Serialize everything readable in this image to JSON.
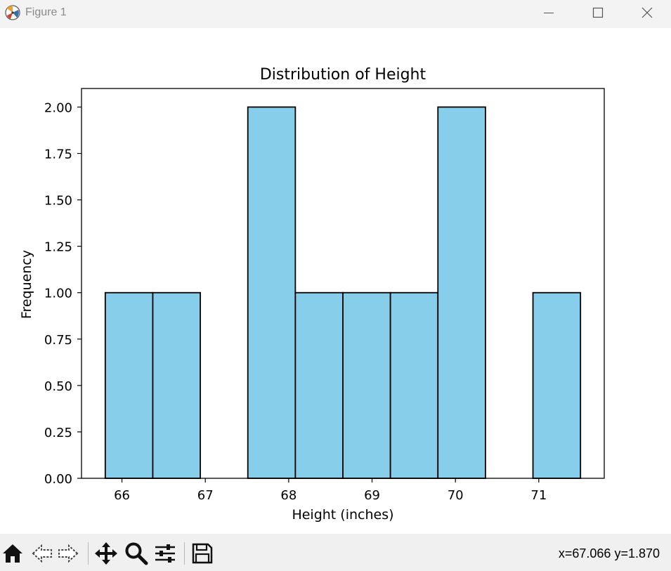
{
  "window": {
    "title": "Figure 1",
    "icons": {
      "app": "matplotlib-icon",
      "minimize": "minimize-icon",
      "maximize": "maximize-icon",
      "close": "close-icon"
    }
  },
  "toolbar": {
    "tools": [
      "home-icon",
      "back-arrow-icon",
      "forward-arrow-icon",
      "pan-move-icon",
      "zoom-magnifier-icon",
      "configure-subplots-icon",
      "save-disk-icon"
    ],
    "coords": "x=67.066 y=1.870"
  },
  "chart_data": {
    "type": "bar",
    "title": "Distribution of Height",
    "xlabel": "Height (inches)",
    "ylabel": "Frequency",
    "bin_edges": [
      65.8,
      66.37,
      66.94,
      67.51,
      68.08,
      68.65,
      69.22,
      69.79,
      70.36,
      70.93,
      71.5
    ],
    "values": [
      1,
      1,
      0,
      2,
      1,
      1,
      1,
      2,
      0,
      1
    ],
    "xlim": [
      65.515,
      71.785
    ],
    "ylim": [
      0,
      2.1
    ],
    "xticks": [
      66,
      67,
      68,
      69,
      70,
      71
    ],
    "yticks": [
      "0.00",
      "0.25",
      "0.50",
      "0.75",
      "1.00",
      "1.25",
      "1.50",
      "1.75",
      "2.00"
    ],
    "bar_color": "#87ceeb",
    "edge_color": "#000000",
    "grid": false
  }
}
